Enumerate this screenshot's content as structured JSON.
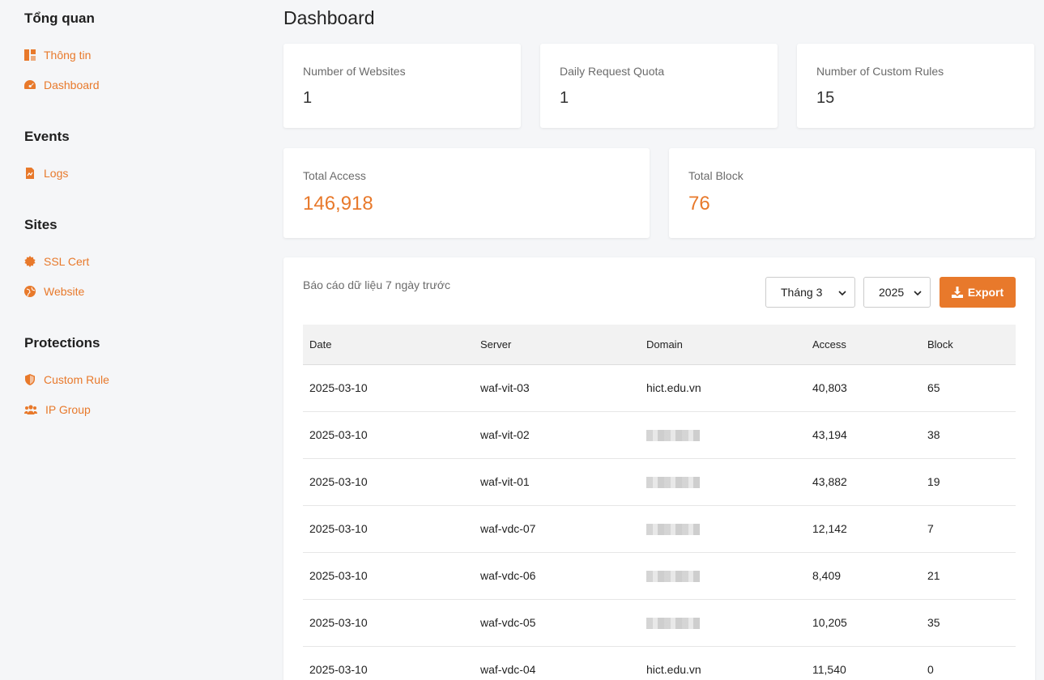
{
  "sidebar": {
    "sections": [
      {
        "title": "Tổng quan",
        "items": [
          {
            "label": "Thông tin",
            "icon": "layout-icon"
          },
          {
            "label": "Dashboard",
            "icon": "gauge-icon"
          }
        ]
      },
      {
        "title": "Events",
        "items": [
          {
            "label": "Logs",
            "icon": "file-chart-icon"
          }
        ]
      },
      {
        "title": "Sites",
        "items": [
          {
            "label": "SSL Cert",
            "icon": "certificate-icon"
          },
          {
            "label": "Website",
            "icon": "globe-icon"
          }
        ]
      },
      {
        "title": "Protections",
        "items": [
          {
            "label": "Custom Rule",
            "icon": "shield-icon"
          },
          {
            "label": "IP Group",
            "icon": "users-icon"
          }
        ]
      }
    ]
  },
  "main": {
    "title": "Dashboard",
    "stats": [
      {
        "label": "Number of Websites",
        "value": "1"
      },
      {
        "label": "Daily Request Quota",
        "value": "1"
      },
      {
        "label": "Number of Custom Rules",
        "value": "15"
      },
      {
        "label": "Total Access",
        "value": "146,918"
      },
      {
        "label": "Total Block",
        "value": "76"
      }
    ],
    "report": {
      "caption": "Báo cáo dữ liệu 7 ngày trước",
      "month_select": "Tháng 3",
      "year_select": "2025",
      "export_label": "Export",
      "columns": [
        "Date",
        "Server",
        "Domain",
        "Access",
        "Block"
      ],
      "rows": [
        [
          "2025-03-10",
          "waf-vit-03",
          "hict.edu.vn",
          "40,803",
          "65"
        ],
        [
          "2025-03-10",
          "waf-vit-02",
          "",
          "43,194",
          "38"
        ],
        [
          "2025-03-10",
          "waf-vit-01",
          "",
          "43,882",
          "19"
        ],
        [
          "2025-03-10",
          "waf-vdc-07",
          "",
          "12,142",
          "7"
        ],
        [
          "2025-03-10",
          "waf-vdc-06",
          "",
          "8,409",
          "21"
        ],
        [
          "2025-03-10",
          "waf-vdc-05",
          "",
          "10,205",
          "35"
        ],
        [
          "2025-03-10",
          "waf-vdc-04",
          "hict.edu.vn",
          "11,540",
          "0"
        ]
      ]
    }
  },
  "colors": {
    "accent": "#e8792b",
    "background": "#f5f6f8"
  }
}
